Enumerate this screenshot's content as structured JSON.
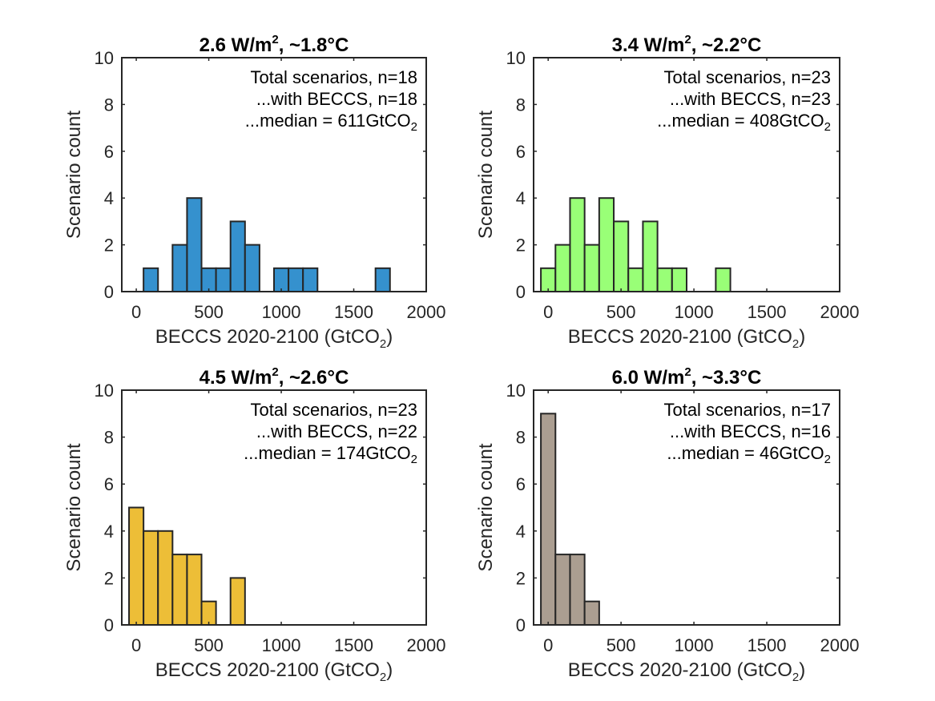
{
  "chart_data": [
    {
      "type": "bar",
      "subtype": "histogram",
      "title": {
        "prefix": "2.6 W/m",
        "sup": "2",
        "suffix": ", ~1.8°C"
      },
      "xlabel": {
        "prefix": "BECCS 2020-2100 (GtCO",
        "sub": "2",
        "suffix": ")"
      },
      "ylabel": "Scenario count",
      "xlim": [
        -100,
        2000
      ],
      "ylim": [
        0,
        10
      ],
      "xticks": [
        0,
        500,
        1000,
        1500,
        2000
      ],
      "yticks": [
        0,
        2,
        4,
        6,
        8,
        10
      ],
      "bin_width": 100,
      "bins": [
        {
          "start": 50,
          "end": 150,
          "count": 1
        },
        {
          "start": 250,
          "end": 350,
          "count": 2
        },
        {
          "start": 350,
          "end": 450,
          "count": 4
        },
        {
          "start": 450,
          "end": 550,
          "count": 1
        },
        {
          "start": 550,
          "end": 650,
          "count": 1
        },
        {
          "start": 650,
          "end": 750,
          "count": 3
        },
        {
          "start": 750,
          "end": 850,
          "count": 2
        },
        {
          "start": 950,
          "end": 1050,
          "count": 1
        },
        {
          "start": 1050,
          "end": 1150,
          "count": 1
        },
        {
          "start": 1150,
          "end": 1250,
          "count": 1
        },
        {
          "start": 1650,
          "end": 1750,
          "count": 1
        }
      ],
      "color": "#3591ce",
      "annotation": {
        "line1": "Total scenarios, n=18",
        "line2": "...with BECCS, n=18",
        "line3_prefix": "...median = 611GtCO",
        "line3_sub": "2"
      }
    },
    {
      "type": "bar",
      "subtype": "histogram",
      "title": {
        "prefix": "3.4 W/m",
        "sup": "2",
        "suffix": ", ~2.2°C"
      },
      "xlabel": {
        "prefix": "BECCS 2020-2100 (GtCO",
        "sub": "2",
        "suffix": ")"
      },
      "ylabel": "Scenario count",
      "xlim": [
        -100,
        2000
      ],
      "ylim": [
        0,
        10
      ],
      "xticks": [
        0,
        500,
        1000,
        1500,
        2000
      ],
      "yticks": [
        0,
        2,
        4,
        6,
        8,
        10
      ],
      "bin_width": 100,
      "bins": [
        {
          "start": -50,
          "end": 50,
          "count": 1
        },
        {
          "start": 50,
          "end": 150,
          "count": 2
        },
        {
          "start": 150,
          "end": 250,
          "count": 4
        },
        {
          "start": 250,
          "end": 350,
          "count": 2
        },
        {
          "start": 350,
          "end": 450,
          "count": 4
        },
        {
          "start": 450,
          "end": 550,
          "count": 3
        },
        {
          "start": 550,
          "end": 650,
          "count": 1
        },
        {
          "start": 650,
          "end": 750,
          "count": 3
        },
        {
          "start": 750,
          "end": 850,
          "count": 1
        },
        {
          "start": 850,
          "end": 950,
          "count": 1
        },
        {
          "start": 1150,
          "end": 1250,
          "count": 1
        }
      ],
      "color": "#99ff77",
      "annotation": {
        "line1": "Total scenarios, n=23",
        "line2": "...with BECCS, n=23",
        "line3_prefix": "...median = 408GtCO",
        "line3_sub": "2"
      }
    },
    {
      "type": "bar",
      "subtype": "histogram",
      "title": {
        "prefix": "4.5 W/m",
        "sup": "2",
        "suffix": ", ~2.6°C"
      },
      "xlabel": {
        "prefix": "BECCS 2020-2100 (GtCO",
        "sub": "2",
        "suffix": ")"
      },
      "ylabel": "Scenario count",
      "xlim": [
        -100,
        2000
      ],
      "ylim": [
        0,
        10
      ],
      "xticks": [
        0,
        500,
        1000,
        1500,
        2000
      ],
      "yticks": [
        0,
        2,
        4,
        6,
        8,
        10
      ],
      "bin_width": 100,
      "bins": [
        {
          "start": -50,
          "end": 50,
          "count": 5
        },
        {
          "start": 50,
          "end": 150,
          "count": 4
        },
        {
          "start": 150,
          "end": 250,
          "count": 4
        },
        {
          "start": 250,
          "end": 350,
          "count": 3
        },
        {
          "start": 350,
          "end": 450,
          "count": 3
        },
        {
          "start": 450,
          "end": 550,
          "count": 1
        },
        {
          "start": 650,
          "end": 750,
          "count": 2
        }
      ],
      "color": "#edbe37",
      "annotation": {
        "line1": "Total scenarios, n=23",
        "line2": "...with BECCS, n=22",
        "line3_prefix": "...median = 174GtCO",
        "line3_sub": "2"
      }
    },
    {
      "type": "bar",
      "subtype": "histogram",
      "title": {
        "prefix": "6.0 W/m",
        "sup": "2",
        "suffix": ", ~3.3°C"
      },
      "xlabel": {
        "prefix": "BECCS 2020-2100 (GtCO",
        "sub": "2",
        "suffix": ")"
      },
      "ylabel": "Scenario count",
      "xlim": [
        -100,
        2000
      ],
      "ylim": [
        0,
        10
      ],
      "xticks": [
        0,
        500,
        1000,
        1500,
        2000
      ],
      "yticks": [
        0,
        2,
        4,
        6,
        8,
        10
      ],
      "bin_width": 100,
      "bins": [
        {
          "start": -50,
          "end": 50,
          "count": 9
        },
        {
          "start": 50,
          "end": 150,
          "count": 3
        },
        {
          "start": 150,
          "end": 250,
          "count": 3
        },
        {
          "start": 250,
          "end": 350,
          "count": 1
        }
      ],
      "color": "#ab9e91",
      "annotation": {
        "line1": "Total scenarios, n=17",
        "line2": "...with BECCS, n=16",
        "line3_prefix": "...median = 46GtCO",
        "line3_sub": "2"
      }
    }
  ]
}
